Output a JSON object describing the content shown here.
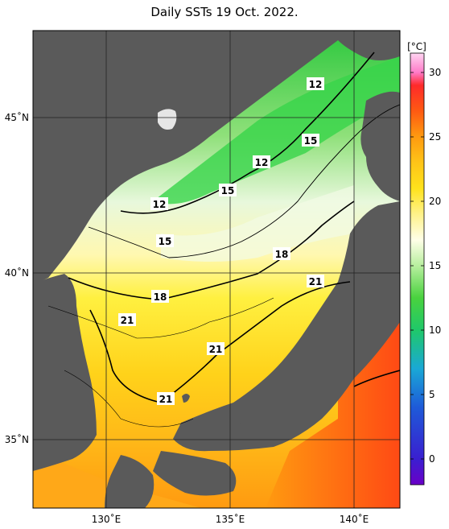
{
  "title": "Daily SSTs 19 Oct. 2022.",
  "colorbar": {
    "unit": "[°C]",
    "min": -2,
    "max": 31.5,
    "ticks": [
      0,
      5,
      10,
      15,
      20,
      25,
      30
    ],
    "stops": [
      {
        "v": -2,
        "c": "#6a00c8"
      },
      {
        "v": 0,
        "c": "#3a1fd0"
      },
      {
        "v": 4,
        "c": "#1e5ad8"
      },
      {
        "v": 7,
        "c": "#1aa8d6"
      },
      {
        "v": 10,
        "c": "#1fc86a"
      },
      {
        "v": 12.5,
        "c": "#49d23e"
      },
      {
        "v": 15,
        "c": "#b8ef9f"
      },
      {
        "v": 17,
        "c": "#ffffe8"
      },
      {
        "v": 19,
        "c": "#fff28a"
      },
      {
        "v": 21,
        "c": "#ffe21c"
      },
      {
        "v": 23,
        "c": "#ffc418"
      },
      {
        "v": 25,
        "c": "#ff9a10"
      },
      {
        "v": 27,
        "c": "#ff5a12"
      },
      {
        "v": 29,
        "c": "#ff2a2a"
      },
      {
        "v": 30,
        "c": "#ff7ac8"
      },
      {
        "v": 31.5,
        "c": "#ffd6f2"
      }
    ]
  },
  "axes": {
    "lon_ticks": [
      {
        "label": "130˚E"
      },
      {
        "label": "135˚E"
      },
      {
        "label": "140˚E"
      }
    ],
    "lat_ticks": [
      {
        "label": "45˚N"
      },
      {
        "label": "40˚N"
      },
      {
        "label": "35˚N"
      }
    ]
  },
  "contour_labels": [
    "12",
    "15",
    "12",
    "15",
    "12",
    "15",
    "18",
    "18",
    "21",
    "21",
    "21",
    "21"
  ],
  "colors": {
    "land": "#5a5a5a",
    "grid": "#222222"
  }
}
